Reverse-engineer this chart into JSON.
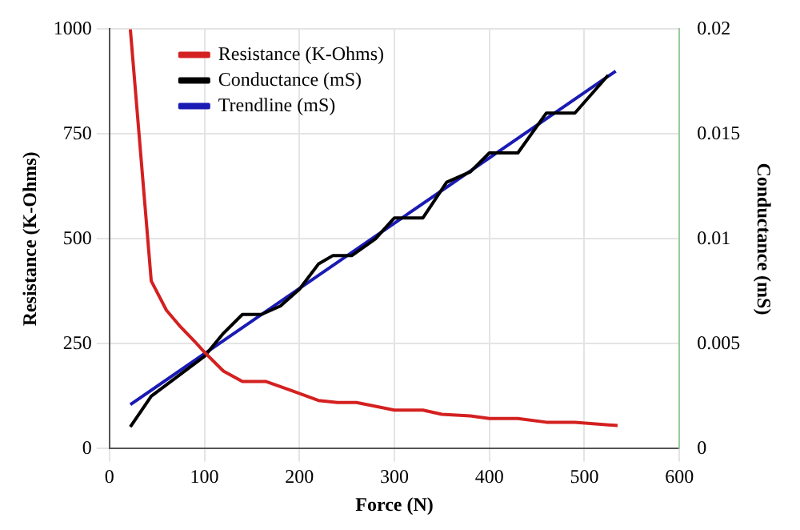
{
  "chart_data": {
    "type": "line",
    "xlabel": "Force (N)",
    "ylabel": "Resistance (K-Ohms)",
    "y2label": "Conductance (mS)",
    "xlim": [
      0,
      600
    ],
    "xticks": [
      0,
      100,
      200,
      300,
      400,
      500,
      600
    ],
    "ylim": [
      0,
      1000
    ],
    "yticks": [
      0,
      250,
      500,
      750,
      1000
    ],
    "y2lim": [
      0,
      0.02
    ],
    "y2ticks": [
      0,
      0.005,
      0.01,
      0.015,
      0.02
    ],
    "grid": true,
    "legend": "top left",
    "marker": "none",
    "line_style": "solid",
    "series": [
      {
        "name": "Resistance (K-Ohms)",
        "color": "#d42020",
        "x": [
          22,
          44,
          60,
          75,
          90,
          100,
          120,
          140,
          165,
          190,
          220,
          240,
          260,
          300,
          330,
          350,
          380,
          400,
          430,
          460,
          490,
          535
        ],
        "values": [
          1000,
          400,
          330,
          290,
          255,
          230,
          185,
          160,
          160,
          140,
          115,
          110,
          110,
          92,
          92,
          82,
          78,
          72,
          72,
          63,
          63,
          55
        ]
      },
      {
        "name": "Conductance (mS)",
        "color": "#000000",
        "axis": "y2",
        "x": [
          22,
          44,
          100,
          120,
          140,
          160,
          180,
          200,
          220,
          235,
          255,
          280,
          300,
          330,
          355,
          380,
          400,
          430,
          460,
          490,
          525
        ],
        "values": [
          0.00104,
          0.0025,
          0.0044,
          0.0055,
          0.0064,
          0.0064,
          0.0068,
          0.0076,
          0.0088,
          0.0092,
          0.0092,
          0.01,
          0.011,
          0.011,
          0.0127,
          0.0132,
          0.0141,
          0.0141,
          0.016,
          0.016,
          0.0178
        ]
      },
      {
        "name": "Trendline (mS)",
        "color": "#1a1ab4",
        "axis": "y2",
        "x": [
          22,
          533
        ],
        "values": [
          0.0021,
          0.018
        ]
      }
    ]
  }
}
